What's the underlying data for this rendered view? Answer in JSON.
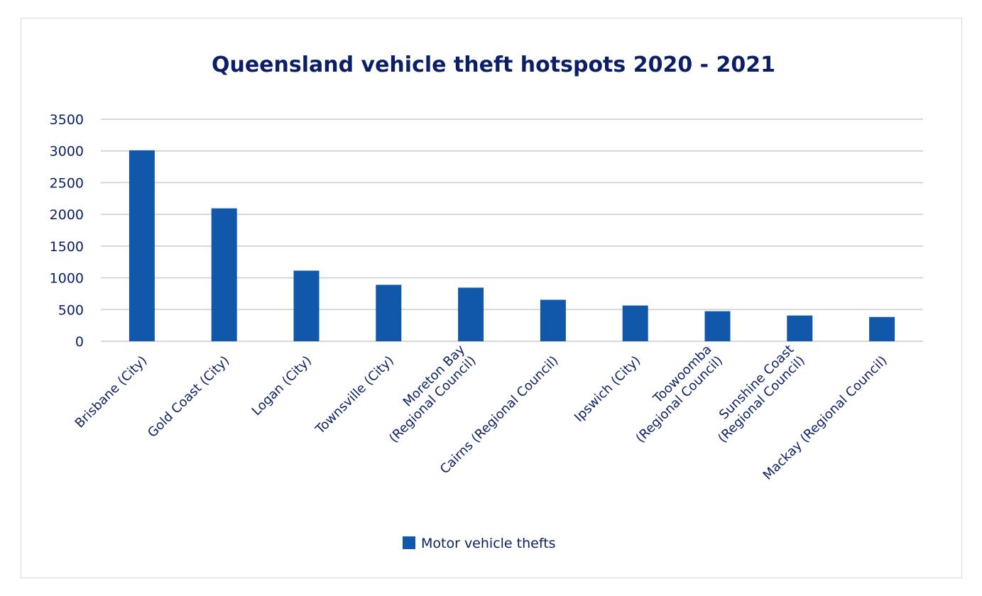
{
  "chart_data": {
    "type": "bar",
    "title": "Queensland vehicle theft hotspots 2020 - 2021",
    "xlabel": "",
    "ylabel": "",
    "ylim": [
      0,
      3500
    ],
    "yticks": [
      0,
      500,
      1000,
      1500,
      2000,
      2500,
      3000,
      3500
    ],
    "grid": true,
    "legend_position": "bottom",
    "categories": [
      [
        "Brisbane (City)"
      ],
      [
        "Gold Coast (City)"
      ],
      [
        "Logan (City)"
      ],
      [
        "Townsville (City)"
      ],
      [
        "Moreton Bay",
        "(Regional Council)"
      ],
      [
        "Cairns (Regional Council)"
      ],
      [
        "Ipswich (City)"
      ],
      [
        "Toowoomba",
        "(Regional Council)"
      ],
      [
        "Sunshine Coast",
        "(Regional Council)"
      ],
      [
        "Mackay (Regional Council)"
      ]
    ],
    "series": [
      {
        "name": "Motor vehicle thefts",
        "color": "#1158ab",
        "values": [
          3010,
          2095,
          1113,
          890,
          845,
          654,
          564,
          474,
          406,
          383
        ]
      }
    ]
  }
}
